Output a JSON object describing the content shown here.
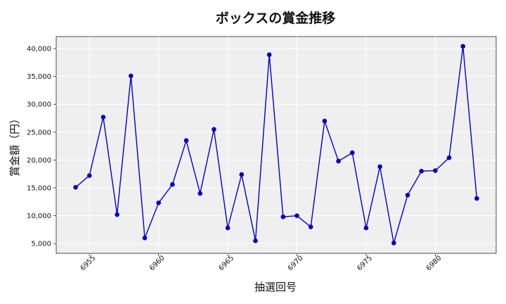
{
  "chart_data": {
    "type": "line",
    "title": "ボックスの賞金推移",
    "xlabel": "抽選回号",
    "ylabel": "賞金額（円）",
    "x": [
      6954,
      6955,
      6956,
      6957,
      6958,
      6959,
      6960,
      6961,
      6962,
      6963,
      6964,
      6965,
      6966,
      6967,
      6968,
      6969,
      6970,
      6971,
      6972,
      6973,
      6974,
      6975,
      6976,
      6977,
      6978,
      6979,
      6980,
      6981,
      6982,
      6983
    ],
    "values": [
      15100,
      17200,
      27700,
      10200,
      35100,
      6000,
      12300,
      15600,
      23500,
      14000,
      25500,
      7800,
      17400,
      5500,
      38900,
      9800,
      10000,
      8000,
      27000,
      19800,
      21300,
      7800,
      18800,
      5100,
      13700,
      18000,
      18100,
      20400,
      40400,
      13100
    ],
    "xlim": [
      6952.6,
      6984.4
    ],
    "ylim": [
      3250,
      42150
    ],
    "x_ticks": [
      6955,
      6960,
      6965,
      6970,
      6975,
      6980
    ],
    "x_tick_labels": [
      "6955",
      "6960",
      "6965",
      "6970",
      "6975",
      "6980"
    ],
    "y_ticks": [
      5000,
      10000,
      15000,
      20000,
      25000,
      30000,
      35000,
      40000
    ],
    "y_tick_labels": [
      "5,000",
      "10,000",
      "15,000",
      "20,000",
      "25,000",
      "30,000",
      "35,000",
      "40,000"
    ],
    "grid": true,
    "line_color": "#0000cc",
    "plot_background": "#efefef"
  }
}
